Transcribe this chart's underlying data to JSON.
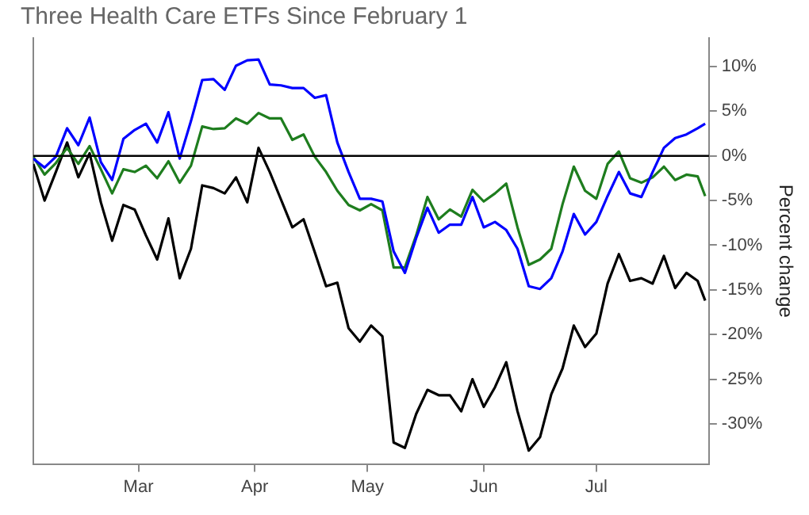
{
  "chart_data": {
    "type": "line",
    "title": "Three Health Care ETFs Since February 1",
    "ylabel": "Percent change",
    "x": [
      "--02-01",
      "--02-04",
      "--02-07",
      "--02-10",
      "--02-13",
      "--02-16",
      "--02-19",
      "--02-22",
      "--02-25",
      "--02-28",
      "--03-03",
      "--03-06",
      "--03-09",
      "--03-12",
      "--03-15",
      "--03-18",
      "--03-21",
      "--03-24",
      "--03-27",
      "--03-30",
      "--04-02",
      "--04-05",
      "--04-08",
      "--04-11",
      "--04-14",
      "--04-17",
      "--04-20",
      "--04-23",
      "--04-26",
      "--04-29",
      "--05-02",
      "--05-05",
      "--05-08",
      "--05-11",
      "--05-14",
      "--05-17",
      "--05-20",
      "--05-23",
      "--05-26",
      "--05-29",
      "--06-01",
      "--06-04",
      "--06-07",
      "--06-10",
      "--06-13",
      "--06-16",
      "--06-19",
      "--06-22",
      "--06-25",
      "--06-28",
      "--07-01",
      "--07-04",
      "--07-07",
      "--07-10",
      "--07-13",
      "--07-16",
      "--07-19",
      "--07-22",
      "--07-25",
      "--07-28",
      "--07-30"
    ],
    "series": [
      {
        "color": "#0000ff",
        "values": [
          -0.3,
          -1.3,
          -0.1,
          3.1,
          1.2,
          4.3,
          -0.7,
          -2.7,
          1.9,
          2.9,
          3.6,
          1.5,
          4.9,
          -0.3,
          3.9,
          8.5,
          8.6,
          7.4,
          10.1,
          10.7,
          10.8,
          8,
          7.9,
          7.6,
          7.6,
          6.5,
          6.8,
          1.5,
          -1.8,
          -4.8,
          -4.8,
          -5.1,
          -10.7,
          -13.1,
          -9.2,
          -5.8,
          -8.6,
          -7.7,
          -7.7,
          -4.6,
          -8,
          -7.4,
          -8.3,
          -10.4,
          -14.6,
          -14.9,
          -13.7,
          -10.7,
          -6.5,
          -8.8,
          -7.4,
          -4.5,
          -1.8,
          -4.2,
          -4.6,
          -1.8,
          0.9,
          2,
          2.4,
          3.1,
          3.6
        ]
      },
      {
        "color": "#1e7d1e",
        "values": [
          -0.1,
          -2.1,
          -0.8,
          0.9,
          -0.9,
          1.1,
          -1.5,
          -4.2,
          -1.5,
          -1.8,
          -1.1,
          -2.5,
          -0.6,
          -3,
          -1.1,
          3.3,
          3,
          3.1,
          4.2,
          3.6,
          4.8,
          4.2,
          4.2,
          1.8,
          2.4,
          -0.1,
          -1.8,
          -3.9,
          -5.5,
          -6.1,
          -5.4,
          -6.1,
          -12.5,
          -12.5,
          -8.9,
          -4.6,
          -7.1,
          -6,
          -6.8,
          -3.8,
          -5.1,
          -4.2,
          -3.1,
          -8,
          -12.2,
          -11.6,
          -10.4,
          -5.4,
          -1.2,
          -3.9,
          -4.8,
          -0.9,
          0.5,
          -2.5,
          -3,
          -2.4,
          -1.2,
          -2.7,
          -2.1,
          -2.3,
          -4.5
        ]
      },
      {
        "color": "#000000",
        "values": [
          -0.9,
          -5,
          -1.8,
          1.5,
          -2.4,
          0.3,
          -5.2,
          -9.5,
          -5.5,
          -6,
          -8.9,
          -11.6,
          -7,
          -13.7,
          -10.4,
          -3.3,
          -3.6,
          -4.2,
          -2.4,
          -5.2,
          0.9,
          -1.8,
          -4.9,
          -8,
          -7.1,
          -10.8,
          -14.6,
          -14.2,
          -19.3,
          -20.8,
          -19,
          -20.2,
          -32.1,
          -32.7,
          -28.9,
          -26.2,
          -26.8,
          -26.8,
          -28.6,
          -25,
          -28.1,
          -25.9,
          -23.1,
          -28.6,
          -33,
          -31.5,
          -26.7,
          -23.8,
          -19,
          -21.4,
          -19.9,
          -14.3,
          -11,
          -14,
          -13.7,
          -14.3,
          -11.2,
          -14.8,
          -13.1,
          -14,
          -16.2
        ]
      }
    ],
    "xlim": [
      "--02-01",
      "--07-31"
    ],
    "xticks": [
      {
        "value": "--03-01",
        "label": "Mar"
      },
      {
        "value": "--04-01",
        "label": "Apr"
      },
      {
        "value": "--05-01",
        "label": "May"
      },
      {
        "value": "--06-01",
        "label": "Jun"
      },
      {
        "value": "--07-01",
        "label": "Jul"
      }
    ],
    "ylim": [
      -34.5,
      13.2
    ],
    "yticks": [
      {
        "value": -30,
        "label": "-30%"
      },
      {
        "value": -25,
        "label": "-25%"
      },
      {
        "value": -20,
        "label": "-20%"
      },
      {
        "value": -15,
        "label": "-15%"
      },
      {
        "value": -10,
        "label": "-10%"
      },
      {
        "value": -5,
        "label": "-5%"
      },
      {
        "value": 0,
        "label": "0%"
      },
      {
        "value": 5,
        "label": "5%"
      },
      {
        "value": 10,
        "label": "10%"
      }
    ],
    "ref_lines": [
      {
        "axis": "y",
        "value": 0,
        "color": "#000000"
      }
    ],
    "grid": false,
    "legend": false,
    "marker": "none",
    "line_style": "solid"
  }
}
